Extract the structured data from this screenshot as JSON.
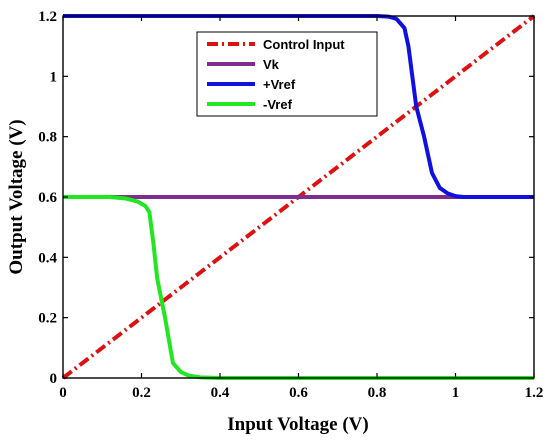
{
  "chart_data": {
    "type": "line",
    "xlabel": "Input Voltage (V)",
    "ylabel": "Output Voltage (V)",
    "xlim": [
      0,
      1.2
    ],
    "ylim": [
      0,
      1.2
    ],
    "x_ticks": [
      "0",
      "0.2",
      "0.4",
      "0.6",
      "0.8",
      "1",
      "1.2"
    ],
    "y_ticks": [
      "0",
      "0.2",
      "0.4",
      "0.6",
      "0.8",
      "1",
      "1.2"
    ],
    "grid": false,
    "legend_position": "top-right",
    "series": [
      {
        "name": "Control Input",
        "color": "#dd1111",
        "style": "dashdot",
        "x": [
          0,
          1.2
        ],
        "y": [
          0,
          1.2
        ]
      },
      {
        "name": "Vk",
        "color": "#7d2e8e",
        "style": "solid",
        "x": [
          0,
          1.2
        ],
        "y": [
          0.6,
          0.6
        ]
      },
      {
        "name": "+Vref",
        "color": "#1010e0",
        "style": "solid",
        "x": [
          0,
          0.8,
          0.83,
          0.85,
          0.87,
          0.88,
          0.89,
          0.9,
          0.92,
          0.94,
          0.96,
          0.98,
          1.0,
          1.02,
          1.2
        ],
        "y": [
          1.2,
          1.2,
          1.198,
          1.19,
          1.16,
          1.1,
          1.0,
          0.9,
          0.8,
          0.68,
          0.63,
          0.612,
          0.603,
          0.6,
          0.6
        ]
      },
      {
        "name": "-Vref",
        "color": "#22e622",
        "style": "solid",
        "x": [
          0,
          0.12,
          0.16,
          0.19,
          0.21,
          0.22,
          0.23,
          0.24,
          0.26,
          0.28,
          0.3,
          0.32,
          0.35,
          0.4,
          1.2
        ],
        "y": [
          0.6,
          0.6,
          0.595,
          0.585,
          0.57,
          0.55,
          0.45,
          0.33,
          0.2,
          0.05,
          0.02,
          0.008,
          0.002,
          0,
          0
        ]
      }
    ]
  }
}
